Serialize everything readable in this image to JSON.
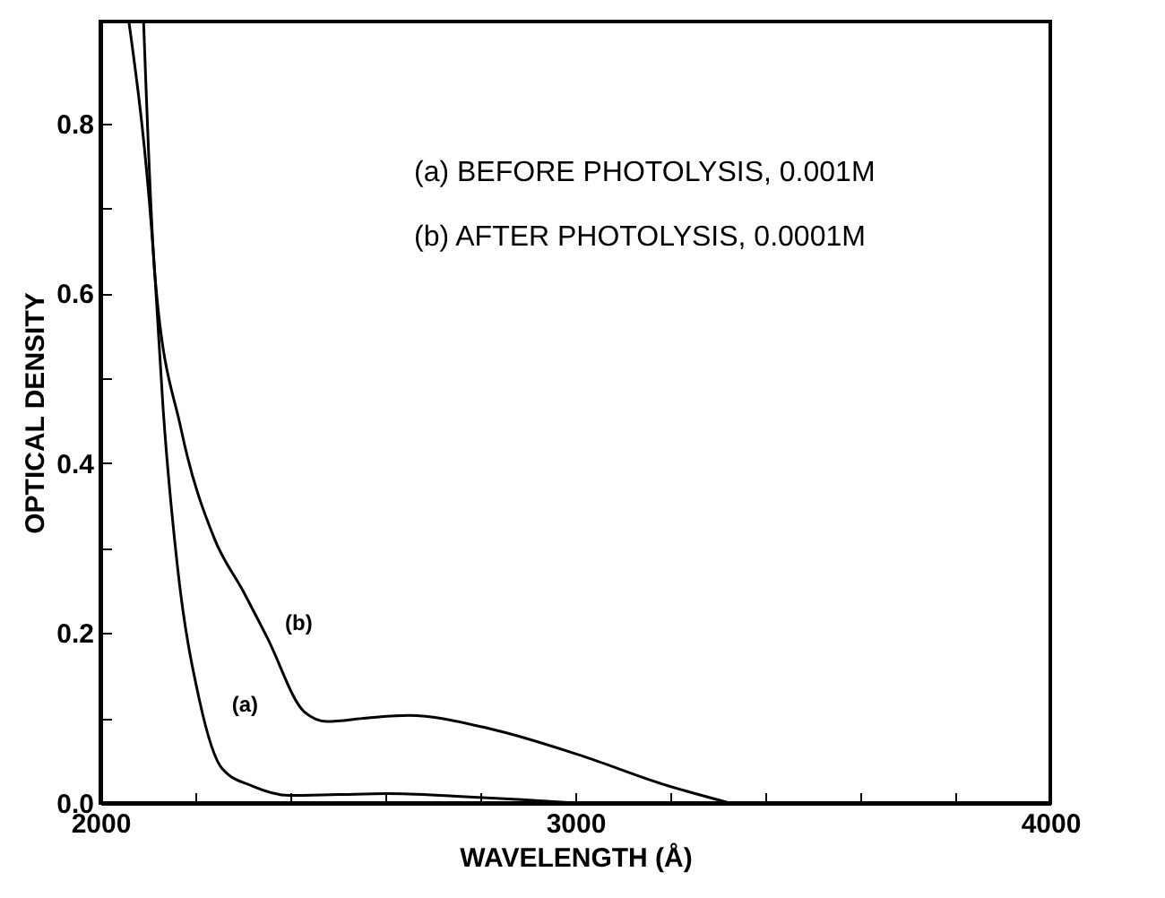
{
  "chart_data": {
    "type": "line",
    "xlabel": "WAVELENGTH (Å)",
    "ylabel": "OPTICAL DENSITY",
    "xlim": [
      2000,
      4000
    ],
    "ylim": [
      0,
      0.92
    ],
    "xticks": [
      2000,
      {
        "value": 2200,
        "label": null
      },
      {
        "value": 2400,
        "label": null
      },
      {
        "value": 2600,
        "label": null
      },
      {
        "value": 2800,
        "label": null
      },
      3000,
      {
        "value": 3200,
        "label": null
      },
      {
        "value": 3400,
        "label": null
      },
      {
        "value": 3600,
        "label": null
      },
      {
        "value": 3800,
        "label": null
      },
      4000
    ],
    "yticks": [
      {
        "value": 0,
        "label": "0.0"
      },
      {
        "value": 0.1,
        "label": null
      },
      {
        "value": 0.2,
        "label": "0.2"
      },
      {
        "value": 0.3,
        "label": null
      },
      {
        "value": 0.4,
        "label": "0.4"
      },
      {
        "value": 0.5,
        "label": null
      },
      {
        "value": 0.6,
        "label": "0.6"
      },
      {
        "value": 0.7,
        "label": null
      },
      {
        "value": 0.8,
        "label": "0.8"
      }
    ],
    "series": [
      {
        "name": "(a)",
        "color": "#000000",
        "x": [
          2060,
          2115,
          2132,
          2162,
          2209,
          2257,
          2320,
          2398,
          2500,
          2604,
          2750,
          2887,
          3000
        ],
        "values": [
          0.92,
          0.62,
          0.465,
          0.28,
          0.12,
          0.04,
          0.02,
          0.009,
          0.01,
          0.011,
          0.008,
          0.004,
          0
        ]
      },
      {
        "name": "(b)",
        "color": "#000000",
        "x": [
          2091,
          2115,
          2170,
          2241,
          2300,
          2351,
          2430,
          2477,
          2560,
          2649,
          2823,
          3011,
          3185,
          3325
        ],
        "values": [
          0.92,
          0.62,
          0.44,
          0.31,
          0.25,
          0.195,
          0.107,
          0.096,
          0.1,
          0.103,
          0.087,
          0.056,
          0.022,
          0
        ]
      }
    ],
    "annotations": [
      "(a) BEFORE PHOTOLYSIS, 0.001M",
      "(b) AFTER PHOTOLYSIS, 0.0001M"
    ],
    "grid": false,
    "legend": false,
    "line_style": "solid",
    "marker": "none"
  }
}
